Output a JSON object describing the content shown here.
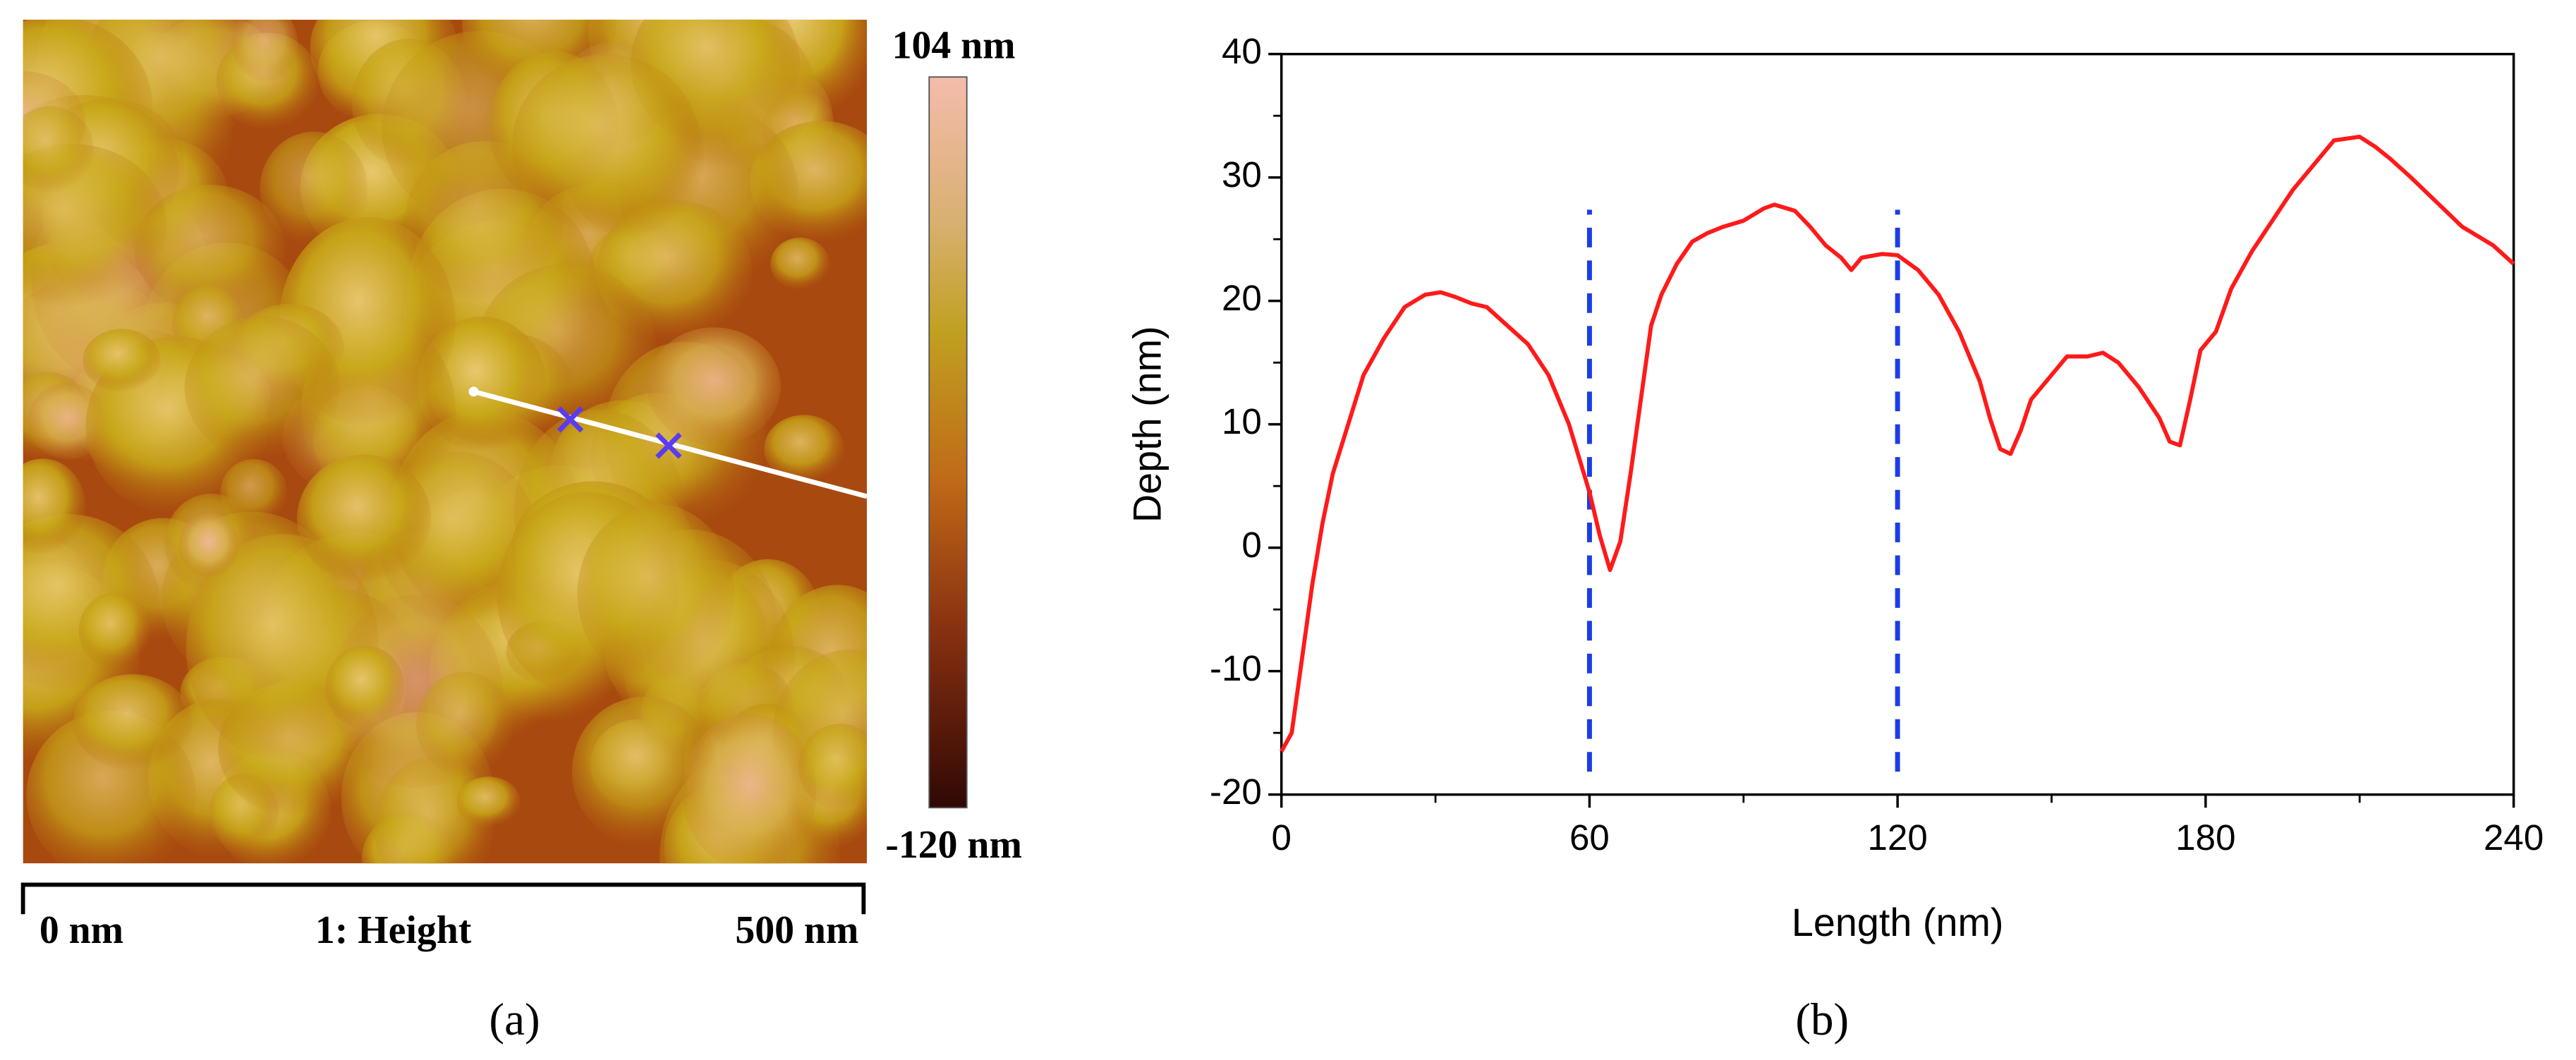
{
  "afm_image": {
    "colorbar_max": "104 nm",
    "colorbar_min": "-120 nm",
    "scale_start": "0 nm",
    "channel": "1: Height",
    "scale_end": "500 nm",
    "caption": "(a)"
  },
  "chart_data": {
    "type": "line",
    "caption": "(b)",
    "xlabel": "Length (nm)",
    "ylabel": "Depth (nm)",
    "x": [
      0,
      2,
      4,
      6,
      8,
      10,
      13,
      16,
      20,
      24,
      28,
      31,
      34,
      37,
      40,
      44,
      48,
      52,
      56,
      60,
      62,
      64,
      66,
      68,
      70,
      72,
      74,
      77,
      80,
      83,
      86,
      90,
      94,
      96,
      100,
      103,
      106,
      109,
      111,
      113,
      117,
      120,
      124,
      128,
      132,
      136,
      138,
      140,
      142,
      144,
      146,
      150,
      153,
      157,
      160,
      163,
      167,
      171,
      173,
      175,
      177,
      179,
      182,
      185,
      189,
      193,
      197,
      201,
      205,
      210,
      213,
      216,
      220,
      225,
      230,
      236,
      240
    ],
    "values": [
      -16.5,
      -15,
      -9,
      -3,
      2,
      6,
      10,
      14,
      17,
      19.5,
      20.5,
      20.7,
      20.3,
      19.8,
      19.5,
      18,
      16.5,
      14,
      10,
      4.5,
      1,
      -1.8,
      0.5,
      6,
      12,
      18,
      20.5,
      23,
      24.8,
      25.5,
      26,
      26.5,
      27.5,
      27.8,
      27.3,
      26,
      24.5,
      23.5,
      22.5,
      23.5,
      23.8,
      23.7,
      22.5,
      20.5,
      17.5,
      13.5,
      10.5,
      8,
      7.6,
      9.5,
      12,
      14,
      15.5,
      15.5,
      15.8,
      15,
      13,
      10.5,
      8.6,
      8.3,
      12,
      16,
      17.5,
      21,
      24,
      26.5,
      29,
      31,
      33,
      33.3,
      32.5,
      31.5,
      30,
      28,
      26,
      24.5,
      23
    ],
    "color": "#ff1a1a",
    "xlim": [
      0,
      240
    ],
    "ylim": [
      -20,
      40
    ],
    "xticks": [
      0,
      60,
      120,
      180,
      240
    ],
    "yticks": [
      -20,
      -10,
      0,
      10,
      20,
      30,
      40
    ],
    "xticks_minor": [
      30,
      90,
      150,
      210
    ],
    "yticks_minor": [
      -15,
      -5,
      5,
      15,
      25,
      35
    ],
    "vlines": [
      60,
      120
    ],
    "vline_color": "#1a3de8"
  }
}
